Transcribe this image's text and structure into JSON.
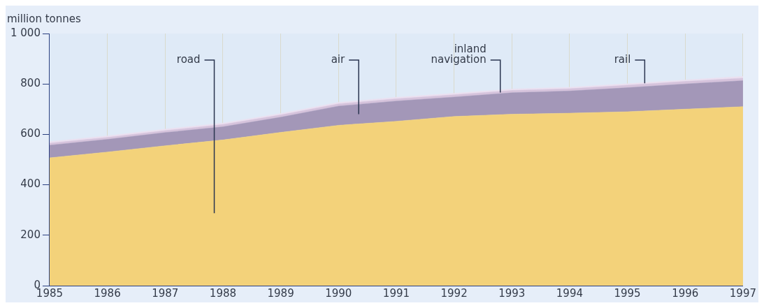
{
  "chart_data": {
    "type": "area",
    "stacked": true,
    "ylabel": "million tonnes",
    "x": [
      1985,
      1986,
      1987,
      1988,
      1989,
      1990,
      1991,
      1992,
      1993,
      1994,
      1995,
      1996,
      1997
    ],
    "xlim": [
      1985,
      1997
    ],
    "xticks": [
      1985,
      1986,
      1987,
      1988,
      1989,
      1990,
      1991,
      1992,
      1993,
      1994,
      1995,
      1996,
      1997
    ],
    "ylim": [
      0,
      1000
    ],
    "yticks": [
      0,
      200,
      400,
      600,
      800,
      {
        "value": 1000,
        "label": "1 000"
      }
    ],
    "grid": "x",
    "marker": "none",
    "legend": false,
    "series": [
      {
        "name": "road",
        "color": "#f3d27a",
        "values": [
          507,
          530,
          555,
          578,
          608,
          636,
          652,
          671,
          680,
          684,
          690,
          700,
          710
        ]
      },
      {
        "name": "air",
        "color": "#a397b8",
        "values": [
          50,
          50,
          52,
          52,
          60,
          76,
          80,
          77,
          85,
          88,
          95,
          100,
          103
        ]
      },
      {
        "name": "inland\nnavigation",
        "color": "#d6c3dc",
        "values": [
          8,
          8,
          8,
          9,
          9,
          9,
          9,
          9,
          9,
          9,
          10,
          10,
          10
        ]
      },
      {
        "name": "rail",
        "color": "#ebe0f0",
        "values": [
          6,
          6,
          6,
          6,
          6,
          6,
          6,
          6,
          6,
          6,
          6,
          6,
          7
        ]
      }
    ]
  }
}
